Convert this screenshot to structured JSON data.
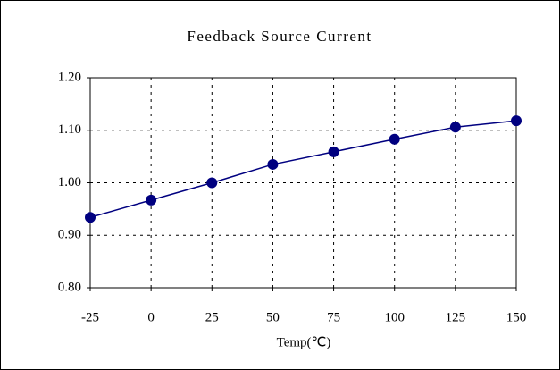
{
  "chart_data": {
    "type": "line",
    "title": "Feedback Source Current",
    "x_label": "Temp(℃)",
    "x": [
      -25,
      0,
      25,
      50,
      75,
      100,
      125,
      150
    ],
    "series": [
      {
        "name": "Feedback Source Current",
        "color": "#000080",
        "values": [
          0.934,
          0.967,
          1.0,
          1.035,
          1.059,
          1.083,
          1.106,
          1.118
        ]
      }
    ],
    "xlim": [
      -25,
      150
    ],
    "xticks": [
      -25,
      0,
      25,
      50,
      75,
      100,
      125,
      150
    ],
    "ylim": [
      0.8,
      1.2
    ],
    "yticks": [
      {
        "value": 0.8,
        "label": "0.80"
      },
      {
        "value": 0.9,
        "label": "0.90"
      },
      {
        "value": 1.0,
        "label": "1.00"
      },
      {
        "value": 1.1,
        "label": "1.10"
      },
      {
        "value": 1.2,
        "label": "1.20"
      }
    ],
    "grid": true,
    "legend": false
  }
}
